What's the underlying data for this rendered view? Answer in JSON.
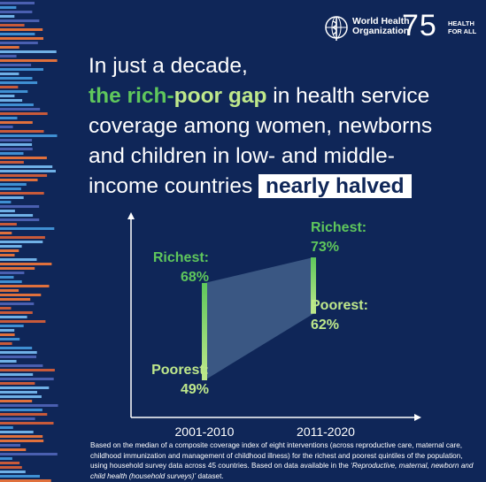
{
  "logo": {
    "org_line1": "World Health",
    "org_line2": "Organization",
    "anniversary": "75",
    "tagline_line1": "HEALTH",
    "tagline_line2": "FOR ALL",
    "icon": "who-emblem-icon"
  },
  "headline": {
    "line1": "In just a decade,",
    "line2_part1": "the rich-",
    "line2_part2": "poor gap",
    "line2_part3": " in health service",
    "line3": "coverage among women, newborns",
    "line4": "and children in low- and middle-",
    "line5": "income countries ",
    "highlight": "nearly halved"
  },
  "chart_data": {
    "type": "range",
    "categories": [
      "2001-2010",
      "2011-2020"
    ],
    "series": [
      {
        "name": "Richest",
        "values": [
          68,
          73
        ]
      },
      {
        "name": "Poorest",
        "values": [
          49,
          62
        ]
      }
    ],
    "labels": {
      "richest_2001": [
        "Richest:",
        "68%"
      ],
      "poorest_2001": [
        "Poorest:",
        "49%"
      ],
      "richest_2011": [
        "Richest:",
        "73%"
      ],
      "poorest_2011": [
        "Poorest:",
        "62%"
      ]
    },
    "ylim": [
      40,
      80
    ],
    "colors": {
      "richest": "#5fc75c",
      "poorest": "#bfe88b",
      "band": "#5f7fa8"
    }
  },
  "footnote": {
    "text1": "Based on the median of a composite coverage index of eight interventions (across reproductive care, maternal care, childhood immunization and management of childhood illness) for the richest and poorest quintiles of the population, using household survey data across 45 countries. Based on data available in the ",
    "dataset": "‘Reproductive, maternal, newborn and child health (household surveys)’",
    "text2": " dataset."
  }
}
